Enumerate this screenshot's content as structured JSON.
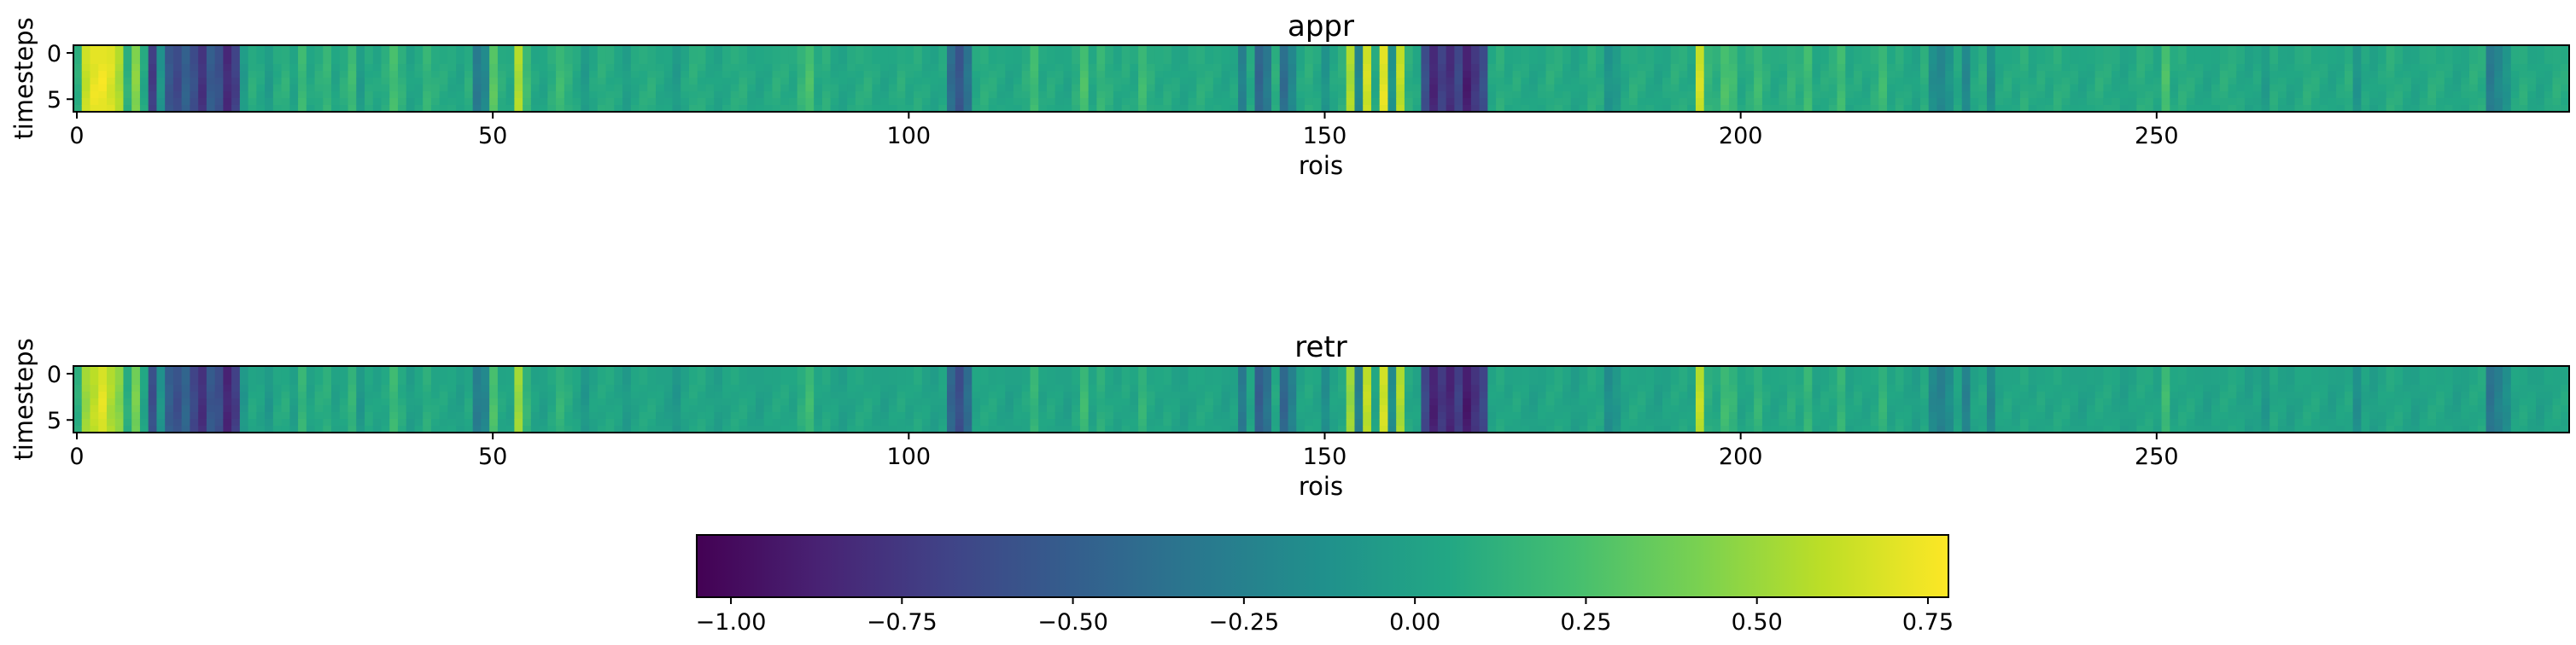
{
  "chart_data": {
    "type": "heatmap",
    "colormap": "viridis",
    "n_rois": 300,
    "n_timesteps": 8,
    "panels": [
      {
        "title": "appr",
        "xlabel": "rois",
        "ylabel": "timesteps",
        "xticks": [
          "0",
          "50",
          "100",
          "150",
          "200",
          "250"
        ],
        "yticks": [
          "0",
          "5"
        ],
        "roi_values": [
          0.1,
          0.62,
          0.72,
          0.74,
          0.68,
          0.55,
          0.12,
          0.45,
          0.05,
          -0.72,
          -0.1,
          -0.55,
          -0.65,
          -0.48,
          -0.6,
          -0.78,
          -0.52,
          -0.58,
          -0.82,
          -0.7,
          -0.05,
          0.1,
          0.05,
          -0.05,
          0.08,
          0.12,
          0.02,
          0.18,
          0.05,
          0.1,
          0.15,
          0.03,
          0.1,
          0.2,
          -0.05,
          0.08,
          0.05,
          0.1,
          0.22,
          0.12,
          0.02,
          0.05,
          0.15,
          0.1,
          0.08,
          0.05,
          0.02,
          0.1,
          -0.3,
          -0.2,
          0.3,
          0.1,
          0.05,
          0.55,
          0.2,
          0.05,
          0.02,
          0.1,
          0.2,
          0.12,
          0.05,
          -0.05,
          0.05,
          0.1,
          0.08,
          0.05,
          -0.02,
          0.05,
          0.08,
          0.1,
          0.05,
          0.02,
          -0.05,
          0.05,
          0.1,
          0.08,
          0.05,
          0.02,
          0.05,
          0.08,
          0.1,
          0.05,
          0.02,
          0.05,
          0.1,
          0.08,
          0.05,
          0.15,
          0.25,
          0.05,
          0.1,
          0.05,
          0.02,
          0.05,
          0.08,
          0.1,
          0.05,
          0.02,
          0.05,
          0.1,
          0.05,
          0.08,
          0.05,
          0.02,
          0.05,
          -0.4,
          -0.55,
          -0.35,
          0.05,
          0.1,
          0.08,
          0.05,
          0.02,
          0.05,
          0.1,
          0.2,
          0.05,
          0.08,
          0.05,
          0.02,
          0.1,
          0.25,
          0.05,
          0.15,
          0.1,
          0.05,
          0.08,
          0.05,
          0.2,
          0.1,
          0.05,
          0.08,
          0.05,
          0.02,
          0.05,
          0.1,
          0.08,
          0.05,
          0.02,
          0.05,
          -0.25,
          0.05,
          -0.45,
          -0.3,
          0.1,
          -0.4,
          -0.2,
          0.05,
          0.1,
          0.05,
          -0.1,
          0.05,
          0.1,
          0.55,
          -0.2,
          0.65,
          0.05,
          0.7,
          -0.1,
          0.6,
          0.1,
          0.05,
          -0.6,
          -0.85,
          -0.7,
          -0.8,
          -0.65,
          -0.9,
          -0.75,
          -0.6,
          0.05,
          0.1,
          0.05,
          0.08,
          0.05,
          0.02,
          0.05,
          0.1,
          0.08,
          0.05,
          0.02,
          0.05,
          0.1,
          0.08,
          -0.1,
          -0.05,
          0.05,
          0.1,
          0.08,
          0.05,
          0.02,
          0.05,
          0.1,
          0.08,
          0.05,
          0.65,
          0.15,
          0.1,
          0.25,
          0.2,
          0.05,
          0.1,
          0.2,
          0.1,
          0.05,
          0.08,
          0.15,
          0.1,
          0.2,
          0.05,
          0.08,
          0.1,
          0.2,
          0.05,
          0.08,
          0.05,
          0.1,
          0.2,
          0.05,
          0.08,
          0.05,
          0.02,
          0.1,
          -0.15,
          -0.2,
          -0.1,
          0.05,
          -0.2,
          0.05,
          0.1,
          -0.15,
          0.05,
          0.08,
          0.05,
          0.1,
          0.05,
          0.08,
          0.05,
          0.1,
          0.08,
          0.05,
          0.02,
          0.05,
          0.1,
          0.08,
          0.05,
          0.02,
          0.05,
          0.1,
          0.08,
          0.05,
          0.25,
          0.05,
          0.1,
          0.08,
          0.05,
          0.02,
          0.05,
          0.1,
          0.08,
          0.05,
          0.02,
          0.05,
          -0.05,
          0.08,
          0.05,
          0.02,
          0.05,
          0.1,
          0.08,
          0.05,
          0.02,
          0.05,
          0.1,
          -0.1,
          0.05,
          0.02,
          0.05,
          0.1,
          0.08,
          0.05,
          0.02,
          0.05,
          0.1,
          0.08,
          0.05,
          0.02,
          0.05,
          0.1,
          0.08,
          -0.3,
          -0.2,
          -0.1,
          0.05,
          0.1,
          0.05,
          0.02,
          0.05,
          0.1,
          0.08
        ]
      },
      {
        "title": "retr",
        "xlabel": "rois",
        "ylabel": "timesteps",
        "xticks": [
          "0",
          "50",
          "100",
          "150",
          "200",
          "250"
        ],
        "yticks": [
          "0",
          "5"
        ],
        "roi_values": [
          0.1,
          0.5,
          0.6,
          0.7,
          0.55,
          0.45,
          0.1,
          0.4,
          0.02,
          -0.6,
          -0.1,
          -0.5,
          -0.6,
          -0.45,
          -0.65,
          -0.8,
          -0.55,
          -0.6,
          -0.85,
          -0.72,
          -0.08,
          0.05,
          0.02,
          -0.08,
          0.05,
          0.08,
          -0.02,
          0.15,
          0.02,
          0.08,
          0.1,
          0.0,
          0.05,
          0.15,
          -0.08,
          0.05,
          0.02,
          0.05,
          0.18,
          0.08,
          -0.02,
          0.02,
          0.1,
          0.05,
          0.05,
          0.02,
          -0.02,
          0.05,
          -0.28,
          -0.22,
          0.25,
          0.05,
          0.02,
          0.5,
          0.15,
          0.02,
          -0.02,
          0.05,
          0.15,
          0.08,
          0.02,
          -0.08,
          0.02,
          0.05,
          0.05,
          0.02,
          -0.05,
          0.02,
          0.05,
          0.05,
          0.02,
          -0.02,
          -0.08,
          0.02,
          0.05,
          0.05,
          0.02,
          -0.02,
          0.02,
          0.05,
          0.05,
          0.02,
          -0.02,
          0.02,
          0.05,
          0.05,
          0.02,
          0.1,
          0.2,
          0.02,
          0.05,
          0.02,
          -0.02,
          0.02,
          0.05,
          0.05,
          0.02,
          -0.02,
          0.02,
          0.05,
          0.02,
          0.05,
          0.02,
          -0.02,
          0.02,
          -0.45,
          -0.6,
          -0.4,
          0.02,
          0.05,
          0.05,
          0.02,
          -0.02,
          0.02,
          0.05,
          0.15,
          0.02,
          0.05,
          0.02,
          -0.02,
          0.05,
          0.2,
          0.02,
          0.1,
          0.05,
          0.02,
          0.05,
          0.02,
          0.15,
          0.05,
          0.02,
          0.05,
          0.02,
          -0.02,
          0.02,
          0.05,
          0.05,
          0.02,
          -0.02,
          0.02,
          -0.3,
          0.02,
          -0.5,
          -0.35,
          0.05,
          -0.45,
          -0.25,
          0.02,
          0.05,
          0.02,
          -0.15,
          0.02,
          0.05,
          0.5,
          -0.25,
          0.6,
          0.02,
          0.65,
          -0.15,
          0.55,
          0.05,
          0.02,
          -0.65,
          -0.88,
          -0.75,
          -0.85,
          -0.7,
          -0.92,
          -0.78,
          -0.65,
          0.02,
          0.05,
          0.02,
          0.05,
          0.02,
          -0.02,
          0.02,
          0.05,
          0.05,
          0.02,
          -0.02,
          0.02,
          0.05,
          0.05,
          -0.15,
          -0.08,
          0.02,
          0.05,
          0.05,
          0.02,
          -0.02,
          0.02,
          0.05,
          0.05,
          0.02,
          0.6,
          0.1,
          0.05,
          0.2,
          0.15,
          0.02,
          0.05,
          0.15,
          0.05,
          0.02,
          0.05,
          0.1,
          0.05,
          0.15,
          0.02,
          0.05,
          0.05,
          0.15,
          0.02,
          0.05,
          0.02,
          0.05,
          0.15,
          0.02,
          0.05,
          0.02,
          -0.02,
          0.05,
          -0.2,
          -0.25,
          -0.15,
          0.02,
          -0.25,
          0.02,
          0.05,
          -0.2,
          0.02,
          0.05,
          0.02,
          0.05,
          0.02,
          0.05,
          0.02,
          0.05,
          0.05,
          0.02,
          -0.02,
          0.02,
          0.05,
          0.05,
          0.02,
          -0.02,
          0.02,
          0.05,
          0.05,
          0.02,
          0.2,
          0.02,
          0.05,
          0.05,
          0.02,
          -0.02,
          0.02,
          0.05,
          0.05,
          0.02,
          -0.02,
          0.02,
          -0.08,
          0.05,
          0.02,
          -0.02,
          0.02,
          0.05,
          0.05,
          0.02,
          -0.02,
          0.02,
          0.05,
          -0.15,
          0.02,
          -0.02,
          0.02,
          0.05,
          0.05,
          0.02,
          -0.02,
          0.02,
          0.05,
          0.05,
          0.02,
          -0.02,
          0.02,
          0.05,
          0.05,
          -0.35,
          -0.25,
          -0.15,
          0.02,
          0.05,
          0.02,
          -0.02,
          0.02,
          0.05,
          0.05
        ]
      }
    ],
    "colorbar": {
      "range": [
        -1.05,
        0.78
      ],
      "ticks": [
        "−1.00",
        "−0.75",
        "−0.50",
        "−0.25",
        "0.00",
        "0.25",
        "0.50",
        "0.75"
      ],
      "tick_values": [
        -1.0,
        -0.75,
        -0.5,
        -0.25,
        0.0,
        0.25,
        0.5,
        0.75
      ]
    }
  }
}
